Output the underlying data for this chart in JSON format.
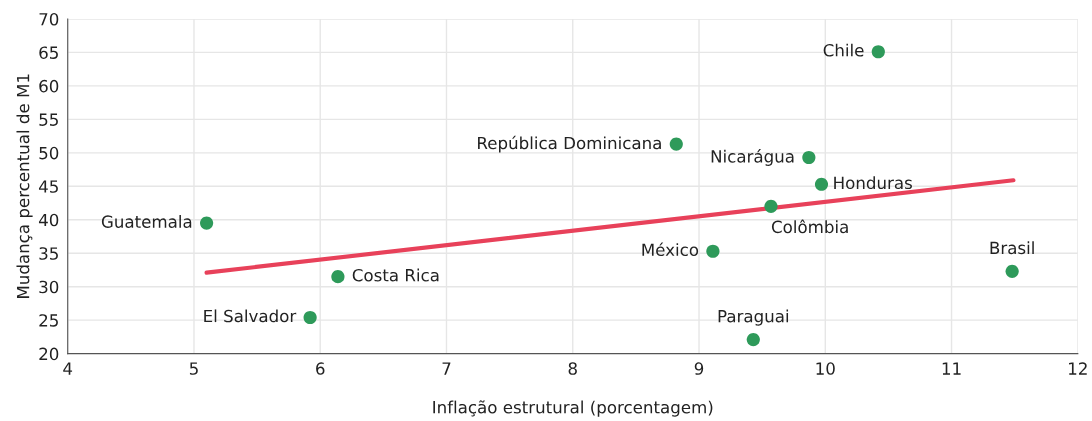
{
  "chart_data": {
    "type": "scatter",
    "xlabel": "Inflação estrutural (porcentagem)",
    "ylabel": "Mudança percentual de M1",
    "series": [
      {
        "color": "#2e9a5a",
        "marker": "circle",
        "x": [
          5.1,
          6.14,
          5.92,
          8.82,
          9.11,
          9.43,
          9.57,
          9.87,
          9.97,
          10.42,
          11.48
        ],
        "values": [
          39.5,
          31.5,
          25.4,
          51.3,
          35.3,
          22.1,
          42.0,
          49.3,
          45.3,
          65.1,
          32.3
        ]
      },
      {
        "type": "line",
        "marker": "none",
        "color": "#e8415a",
        "x": [
          5.1,
          11.49
        ],
        "values": [
          32.1,
          45.9
        ]
      }
    ],
    "annotations": [
      {
        "text": "Guatemala",
        "x": 5.1,
        "y": 39.5
      },
      {
        "text": "Costa Rica",
        "x": 6.14,
        "y": 31.5
      },
      {
        "text": "El Salvador",
        "x": 5.92,
        "y": 25.4
      },
      {
        "text": "República Dominicana",
        "x": 8.82,
        "y": 51.3
      },
      {
        "text": "México",
        "x": 9.11,
        "y": 35.3
      },
      {
        "text": "Paraguai",
        "x": 9.43,
        "y": 22.1
      },
      {
        "text": "Colômbia",
        "x": 9.57,
        "y": 42.0
      },
      {
        "text": "Nicarágua",
        "x": 9.87,
        "y": 49.3
      },
      {
        "text": "Honduras",
        "x": 9.97,
        "y": 45.3
      },
      {
        "text": "Chile",
        "x": 10.42,
        "y": 65.1
      },
      {
        "text": "Brasil",
        "x": 11.48,
        "y": 32.3
      }
    ],
    "xlim": [
      4,
      12
    ],
    "xticks": [
      4,
      5,
      6,
      7,
      8,
      9,
      10,
      11,
      12
    ],
    "ylim": [
      20,
      70
    ],
    "yticks": [
      20,
      25,
      30,
      35,
      40,
      45,
      50,
      55,
      60,
      65,
      70
    ],
    "grid": true
  }
}
